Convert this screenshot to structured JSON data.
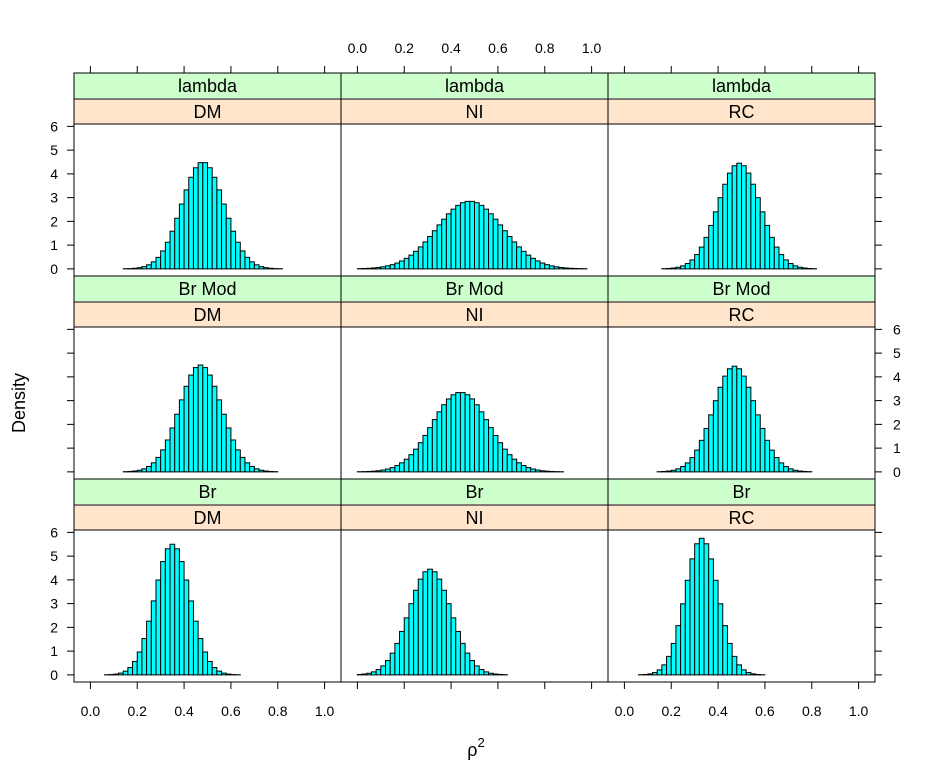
{
  "chart_data": {
    "type": "bar",
    "kind": "lattice histogram",
    "xlabel": "ρ",
    "xlabel_superscript": "2",
    "ylabel": "Density",
    "xlim": [
      -0.07,
      1.07
    ],
    "ylim": [
      -0.3,
      6.1
    ],
    "x_ticks": [
      "0.0",
      "0.2",
      "0.4",
      "0.6",
      "0.8",
      "1.0"
    ],
    "y_ticks": [
      "0",
      "1",
      "2",
      "3",
      "4",
      "5",
      "6"
    ],
    "strip_colors": {
      "outer": "#ccffcc",
      "inner": "#ffe5cc"
    },
    "bar_color": "#00ffff",
    "bin_width": 0.02,
    "panels": [
      {
        "outer": "lambda",
        "inner": "DM",
        "mean": 0.48,
        "sd": 0.09,
        "peak": 4.5
      },
      {
        "outer": "lambda",
        "inner": "NI",
        "mean": 0.48,
        "sd": 0.14,
        "peak": 2.85
      },
      {
        "outer": "lambda",
        "inner": "RC",
        "mean": 0.49,
        "sd": 0.09,
        "peak": 4.45
      },
      {
        "outer": "Br Mod",
        "inner": "DM",
        "mean": 0.47,
        "sd": 0.09,
        "peak": 4.5
      },
      {
        "outer": "Br Mod",
        "inner": "NI",
        "mean": 0.44,
        "sd": 0.12,
        "peak": 3.35
      },
      {
        "outer": "Br Mod",
        "inner": "RC",
        "mean": 0.47,
        "sd": 0.09,
        "peak": 4.45
      },
      {
        "outer": "Br",
        "inner": "DM",
        "mean": 0.35,
        "sd": 0.075,
        "peak": 5.5
      },
      {
        "outer": "Br",
        "inner": "NI",
        "mean": 0.31,
        "sd": 0.09,
        "peak": 4.45
      },
      {
        "outer": "Br",
        "inner": "RC",
        "mean": 0.33,
        "sd": 0.07,
        "peak": 5.75
      }
    ]
  }
}
